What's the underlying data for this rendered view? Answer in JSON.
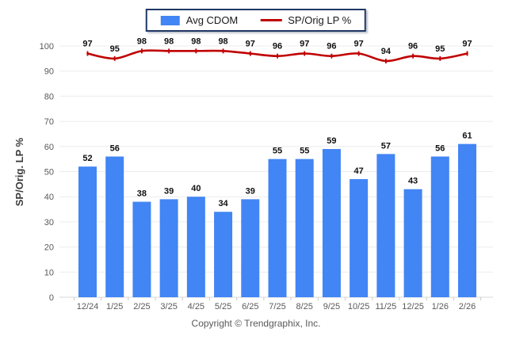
{
  "page": {
    "background": "#ffffff"
  },
  "legend": {
    "border_color": "#1F3864",
    "items": [
      {
        "label": "Avg CDOM",
        "type": "bar",
        "color": "#4285F4"
      },
      {
        "label": "SP/Orig LP %",
        "type": "line",
        "color": "#C00000"
      }
    ]
  },
  "footer": {
    "copyright": "Copyright © Trendgraphix, Inc."
  },
  "chart_data": {
    "type": "bar+line",
    "categories": [
      "12/24",
      "1/25",
      "2/25",
      "3/25",
      "4/25",
      "5/25",
      "6/25",
      "7/25",
      "8/25",
      "9/25",
      "10/25",
      "11/25",
      "12/25",
      "1/26",
      "2/26"
    ],
    "series": [
      {
        "name": "Avg CDOM",
        "type": "bar",
        "color": "#4285F4",
        "values": [
          52,
          56,
          38,
          39,
          40,
          34,
          39,
          55,
          55,
          59,
          47,
          57,
          43,
          56,
          61
        ]
      },
      {
        "name": "SP/Orig LP %",
        "type": "line",
        "color": "#C00000",
        "values": [
          97,
          95,
          98,
          98,
          98,
          98,
          97,
          96,
          97,
          96,
          97,
          94,
          96,
          95,
          97
        ]
      }
    ],
    "xlabel": "",
    "ylabel": "SP/Orig. LP %",
    "ylim": [
      0,
      100
    ],
    "ytick_step": 10,
    "yticks": [
      0,
      10,
      20,
      30,
      40,
      50,
      60,
      70,
      80,
      90,
      100
    ],
    "grid": true,
    "data_labels": true,
    "legend_position": "top-center",
    "colors": {
      "grid": "#ececec",
      "axis": "#d9d9d9",
      "tick": "#c9c9c9",
      "tick_label": "#595959",
      "data_label": "#111111"
    }
  }
}
